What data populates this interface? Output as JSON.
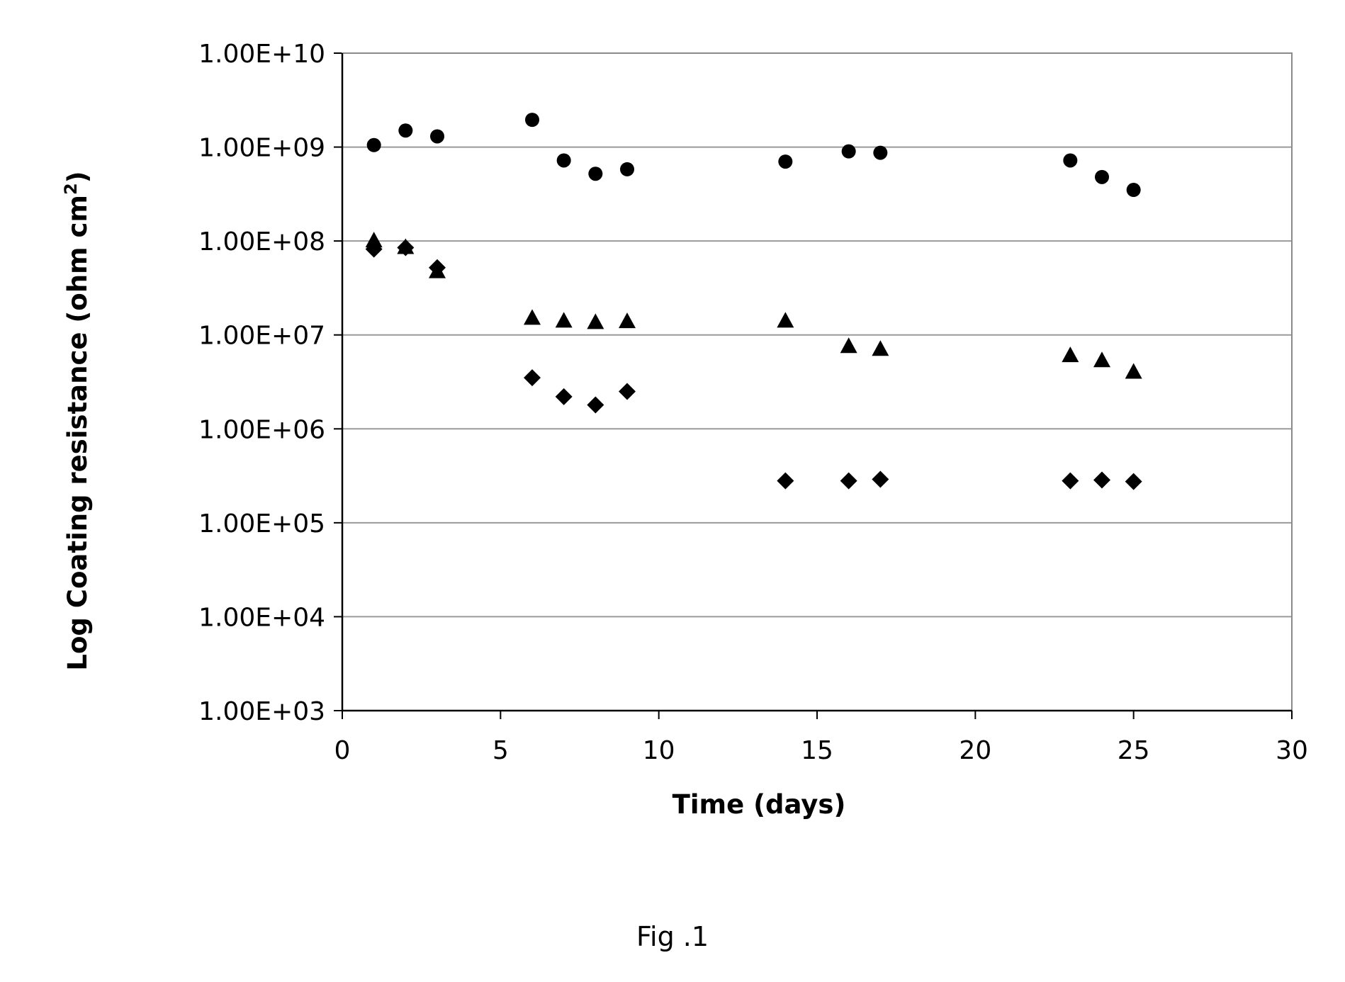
{
  "figure": {
    "caption": "Fig .1"
  },
  "chart_data": {
    "type": "scatter",
    "xlabel": "Time (days)",
    "ylabel": "Log Coating resistance (ohm cm",
    "ylabel_superscript": "2",
    "ylabel_suffix": ")",
    "x_scale": "linear",
    "y_scale": "log",
    "xlim": [
      0,
      30
    ],
    "ylim": [
      1000,
      10000000000
    ],
    "x_ticks": [
      0,
      5,
      10,
      15,
      20,
      25,
      30
    ],
    "x_tick_labels": [
      "0",
      "5",
      "10",
      "15",
      "20",
      "25",
      "30"
    ],
    "y_ticks": [
      1000,
      10000,
      100000,
      1000000,
      10000000,
      100000000,
      1000000000,
      10000000000
    ],
    "y_tick_labels": [
      "1.00E+03",
      "1.00E+04",
      "1.00E+05",
      "1.00E+06",
      "1.00E+07",
      "1.00E+08",
      "1.00E+09",
      "1.00E+10"
    ],
    "grid": "horizontal",
    "legend": "none",
    "series": [
      {
        "marker": "circle",
        "color": "#000000",
        "x": [
          1,
          2,
          3,
          6,
          7,
          8,
          9,
          14,
          16,
          17,
          23,
          24,
          25
        ],
        "y": [
          1050000000,
          1500000000,
          1300000000,
          1950000000,
          720000000,
          520000000,
          580000000,
          700000000,
          900000000,
          870000000,
          720000000,
          480000000,
          350000000
        ]
      },
      {
        "marker": "triangle",
        "color": "#000000",
        "x": [
          1,
          2,
          3,
          6,
          7,
          8,
          9,
          14,
          16,
          17,
          23,
          24,
          25
        ],
        "y": [
          100000000,
          85000000,
          47000000,
          15000000,
          14000000,
          13500000,
          13800000,
          14000000,
          7500000,
          7000000,
          6000000,
          5300000,
          4000000
        ]
      },
      {
        "marker": "diamond",
        "color": "#000000",
        "x": [
          1,
          2,
          3,
          6,
          7,
          8,
          9,
          14,
          16,
          17,
          23,
          24,
          25
        ],
        "y": [
          82000000,
          85000000,
          52000000,
          3500000,
          2200000,
          1800000,
          2500000,
          280000,
          280000,
          290000,
          280000,
          285000,
          275000
        ]
      }
    ]
  }
}
